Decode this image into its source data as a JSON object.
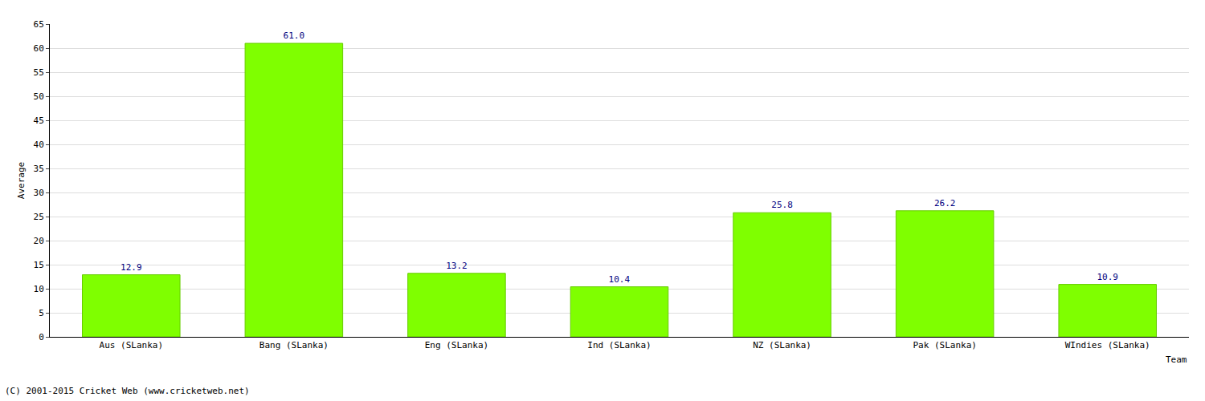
{
  "chart_data": {
    "type": "bar",
    "categories": [
      "Aus (SLanka)",
      "Bang (SLanka)",
      "Eng (SLanka)",
      "Ind (SLanka)",
      "NZ (SLanka)",
      "Pak (SLanka)",
      "WIndies (SLanka)"
    ],
    "values": [
      12.9,
      61.0,
      13.2,
      10.4,
      25.8,
      26.2,
      10.9
    ],
    "value_labels": [
      "12.9",
      "61.0",
      "13.2",
      "10.4",
      "25.8",
      "26.2",
      "10.9"
    ],
    "data_labels": true,
    "color": "#7fff00",
    "x_label": "Team",
    "y_label": "Average",
    "annotation": "(C) 2001-2015 Cricket Web (www.cricketweb.net)",
    "ylim": [
      0,
      65
    ],
    "yticks": [
      0,
      5,
      10,
      15,
      20,
      25,
      30,
      35,
      40,
      45,
      50,
      55,
      60,
      65
    ],
    "grid": true
  }
}
